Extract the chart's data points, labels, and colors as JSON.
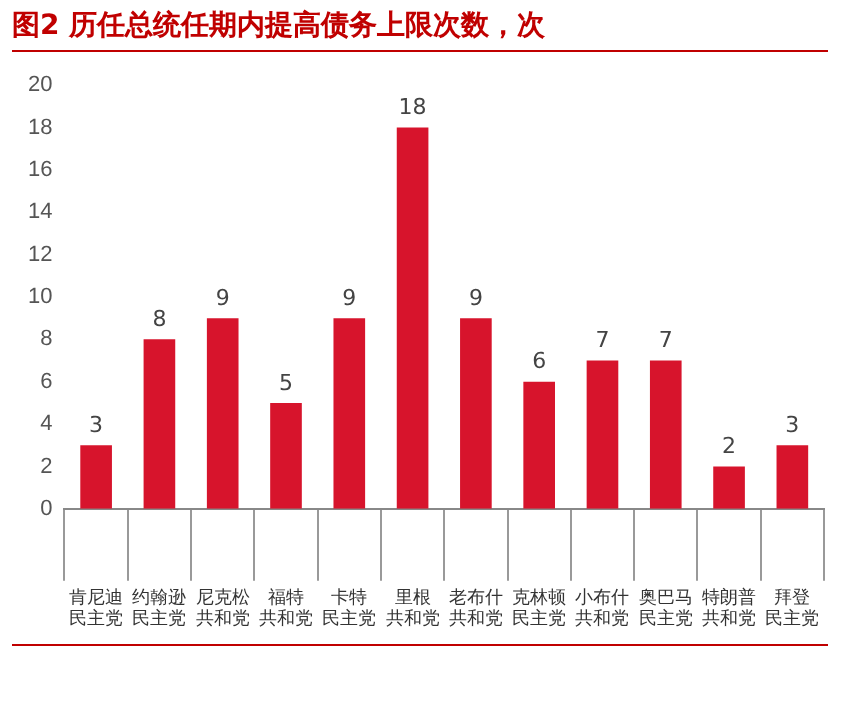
{
  "chart_data": {
    "type": "bar",
    "title": "图2 历任总统任期内提高债务上限次数，次",
    "categories": [
      "肯尼迪民主党",
      "约翰逊民主党",
      "尼克松共和党",
      "福特共和党",
      "卡特民主党",
      "里根共和党",
      "老布什共和党",
      "克林顿民主党",
      "小布什共和党",
      "奥巴马民主党",
      "特朗普共和党",
      "拜登民主党"
    ],
    "values": [
      3,
      8,
      9,
      5,
      9,
      18,
      9,
      6,
      7,
      7,
      2,
      3
    ],
    "color": "#d7142c",
    "ylim": [
      0,
      20
    ],
    "yticks": [
      0,
      2,
      4,
      6,
      8,
      10,
      12,
      14,
      16,
      18,
      20
    ],
    "data_labels": true,
    "grid": false,
    "legend": false
  }
}
